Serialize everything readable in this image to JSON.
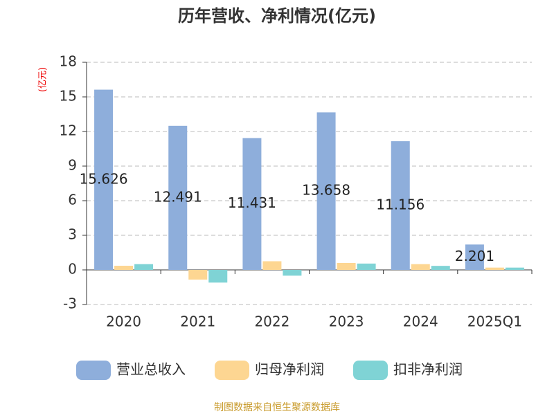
{
  "chart_data": {
    "type": "bar",
    "title": "历年营收、净利情况(亿元)",
    "y_label": "(亿元)",
    "categories": [
      "2020",
      "2021",
      "2022",
      "2023",
      "2024",
      "2025Q1"
    ],
    "series": [
      {
        "name": "营业总收入",
        "color": "#8eaedb",
        "values": [
          15.626,
          12.491,
          11.431,
          13.658,
          11.156,
          2.201
        ],
        "show_labels": true
      },
      {
        "name": "归母净利润",
        "color": "#fdd692",
        "values": [
          0.36,
          -0.84,
          0.75,
          0.6,
          0.5,
          0.2
        ]
      },
      {
        "name": "扣非净利润",
        "color": "#7fd3d5",
        "values": [
          0.5,
          -1.1,
          -0.5,
          0.55,
          0.35,
          0.2
        ]
      }
    ],
    "ylim": [
      -3,
      18
    ],
    "yticks": [
      -3,
      0,
      3,
      6,
      9,
      12,
      15,
      18
    ],
    "grid": true,
    "source": "制图数据来自恒生聚源数据库"
  }
}
